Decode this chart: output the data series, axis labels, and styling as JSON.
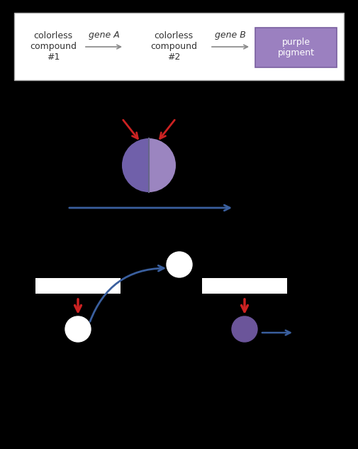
{
  "bg_color": "#000000",
  "top_panel_bg": "#ffffff",
  "top_panel_border": "#aaaaaa",
  "pathway_labels": [
    "colorless\ncompound\n#1",
    "colorless\ncompound\n#2",
    "purple\npigment"
  ],
  "gene_labels": [
    "gene A",
    "gene B"
  ],
  "purple_box_color": "#9b80c0",
  "purple_box_edge": "#7a60a0",
  "arrow_color_gray": "#888888",
  "circle_left_color": "#7060aa",
  "circle_right_color": "#9b85c0",
  "blue_arrow_color": "#3a5f9e",
  "red_arrow_color": "#cc2222",
  "bar_color": "#ffffff",
  "white_circle_color": "#ffffff",
  "purple_small_color": "#6b559a"
}
